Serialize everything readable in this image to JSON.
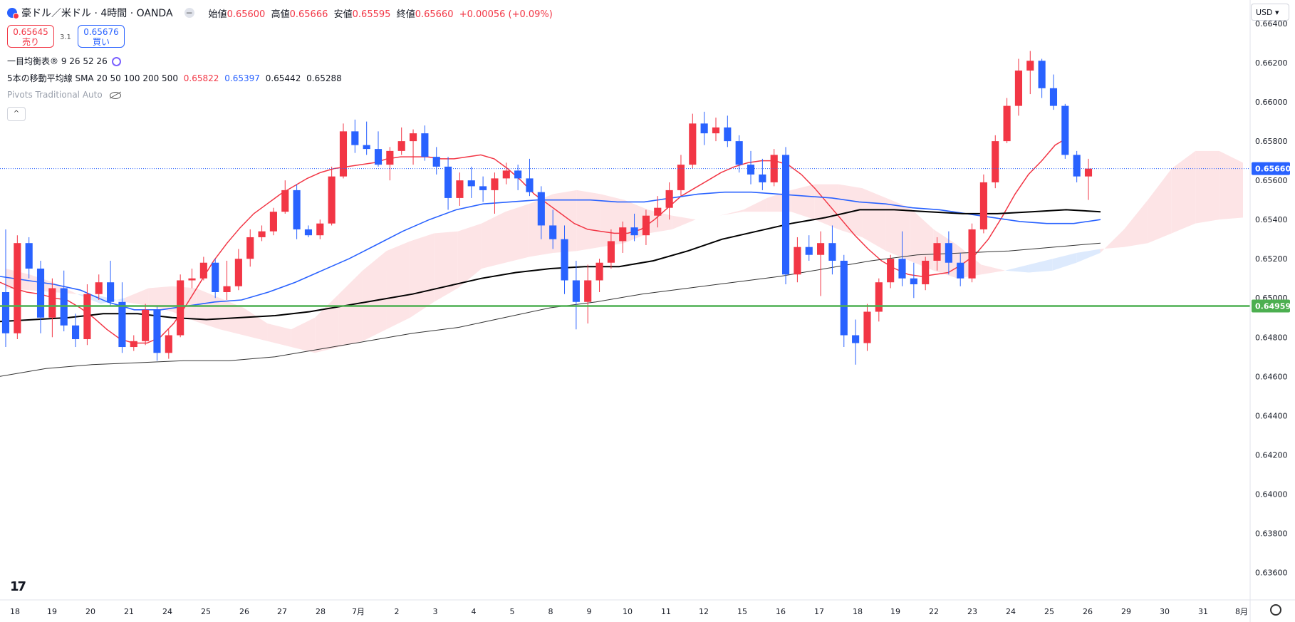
{
  "header": {
    "symbol": "豪ドル／米ドル · 4時間 · OANDA",
    "open_label": "始値",
    "open": "0.65600",
    "high_label": "高値",
    "high": "0.65666",
    "low_label": "安値",
    "low": "0.65595",
    "close_label": "終値",
    "close": "0.65660",
    "change": "+0.00056 (+0.09%)"
  },
  "trade": {
    "sell_price": "0.65645",
    "sell_label": "売り",
    "buy_price": "0.65676",
    "buy_label": "買い",
    "spread": "3.1"
  },
  "indicators": {
    "ichimoku": "一目均衡表® 9 26 52 26",
    "ma_label": "5本の移動平均線 SMA 20 50 100 200 500",
    "ma_values": [
      "0.65822",
      "0.65397",
      "0.65442",
      "0.65288"
    ],
    "pivots": "Pivots Traditional Auto"
  },
  "currency": "USD",
  "colors": {
    "up": "#f23645",
    "down": "#2962ff",
    "sma20": "#f23645",
    "sma50": "#2962ff",
    "sma100": "#000000",
    "sma200": "#333333",
    "level": "#4caf50",
    "cloud_bull": "#fde4e6",
    "cloud_bear": "#ddeafd"
  },
  "chart_data": {
    "type": "candlestick",
    "y_ticks": [
      "0.66400",
      "0.66200",
      "0.66000",
      "0.65800",
      "0.65600",
      "0.65400",
      "0.65200",
      "0.65000",
      "0.64800",
      "0.64600",
      "0.64400",
      "0.64200",
      "0.64000",
      "0.63800",
      "0.63600"
    ],
    "ylim": [
      0.6346,
      0.6652
    ],
    "x_ticks": [
      "18",
      "19",
      "20",
      "21",
      "24",
      "25",
      "26",
      "27",
      "28",
      "7月",
      "2",
      "3",
      "4",
      "5",
      "8",
      "9",
      "10",
      "11",
      "12",
      "15",
      "16",
      "17",
      "18",
      "19",
      "22",
      "23",
      "24",
      "25",
      "26",
      "29",
      "30",
      "31",
      "8月"
    ],
    "current_price": "0.65660",
    "horizontal_level": "0.64959",
    "candles": [
      [
        0.6503,
        0.6535,
        0.6475,
        0.6482
      ],
      [
        0.6482,
        0.6532,
        0.6479,
        0.6528
      ],
      [
        0.6528,
        0.6531,
        0.651,
        0.6515
      ],
      [
        0.6515,
        0.6519,
        0.6482,
        0.649
      ],
      [
        0.649,
        0.651,
        0.648,
        0.6505
      ],
      [
        0.6505,
        0.6514,
        0.6483,
        0.6486
      ],
      [
        0.6486,
        0.6492,
        0.6475,
        0.6479
      ],
      [
        0.6479,
        0.6507,
        0.6476,
        0.6502
      ],
      [
        0.6502,
        0.6512,
        0.6499,
        0.6508
      ],
      [
        0.6508,
        0.6519,
        0.6496,
        0.6498
      ],
      [
        0.6498,
        0.6508,
        0.6472,
        0.6475
      ],
      [
        0.6475,
        0.6481,
        0.6473,
        0.6478
      ],
      [
        0.6478,
        0.6497,
        0.6476,
        0.6494
      ],
      [
        0.6494,
        0.6496,
        0.6468,
        0.6472
      ],
      [
        0.6472,
        0.6484,
        0.6469,
        0.6481
      ],
      [
        0.6481,
        0.6512,
        0.648,
        0.6509
      ],
      [
        0.6509,
        0.6515,
        0.6505,
        0.651
      ],
      [
        0.651,
        0.6521,
        0.6509,
        0.6518
      ],
      [
        0.6518,
        0.652,
        0.65,
        0.6503
      ],
      [
        0.6503,
        0.6519,
        0.6499,
        0.6506
      ],
      [
        0.6506,
        0.6525,
        0.6504,
        0.652
      ],
      [
        0.652,
        0.6535,
        0.6516,
        0.6531
      ],
      [
        0.6531,
        0.6537,
        0.6529,
        0.6534
      ],
      [
        0.6534,
        0.6546,
        0.6532,
        0.6544
      ],
      [
        0.6544,
        0.656,
        0.6543,
        0.6555
      ],
      [
        0.6555,
        0.6558,
        0.653,
        0.6535
      ],
      [
        0.6535,
        0.6537,
        0.6531,
        0.6532
      ],
      [
        0.6532,
        0.654,
        0.653,
        0.6538
      ],
      [
        0.6538,
        0.6567,
        0.6537,
        0.6562
      ],
      [
        0.6562,
        0.6589,
        0.6561,
        0.6585
      ],
      [
        0.6585,
        0.6591,
        0.6574,
        0.6578
      ],
      [
        0.6578,
        0.659,
        0.6573,
        0.6576
      ],
      [
        0.6576,
        0.6585,
        0.6567,
        0.6568
      ],
      [
        0.6568,
        0.6577,
        0.656,
        0.6575
      ],
      [
        0.6575,
        0.6587,
        0.6573,
        0.658
      ],
      [
        0.658,
        0.6586,
        0.6568,
        0.6584
      ],
      [
        0.6584,
        0.6588,
        0.657,
        0.6572
      ],
      [
        0.6572,
        0.6577,
        0.6563,
        0.6567
      ],
      [
        0.6567,
        0.6572,
        0.6545,
        0.6551
      ],
      [
        0.6551,
        0.6564,
        0.6547,
        0.656
      ],
      [
        0.656,
        0.6567,
        0.6551,
        0.6557
      ],
      [
        0.6557,
        0.6562,
        0.6549,
        0.6555
      ],
      [
        0.6555,
        0.6564,
        0.6543,
        0.6561
      ],
      [
        0.6561,
        0.6569,
        0.6558,
        0.6565
      ],
      [
        0.6565,
        0.6568,
        0.6555,
        0.6561
      ],
      [
        0.6561,
        0.6571,
        0.6552,
        0.6554
      ],
      [
        0.6554,
        0.6557,
        0.653,
        0.6537
      ],
      [
        0.6537,
        0.6545,
        0.6525,
        0.653
      ],
      [
        0.653,
        0.6537,
        0.6502,
        0.6509
      ],
      [
        0.6509,
        0.6519,
        0.6484,
        0.6498
      ],
      [
        0.6498,
        0.6517,
        0.6487,
        0.6509
      ],
      [
        0.6509,
        0.652,
        0.6503,
        0.6518
      ],
      [
        0.6518,
        0.6535,
        0.6515,
        0.6529
      ],
      [
        0.6529,
        0.6539,
        0.6523,
        0.6536
      ],
      [
        0.6536,
        0.6543,
        0.6529,
        0.6532
      ],
      [
        0.6532,
        0.6545,
        0.6527,
        0.6542
      ],
      [
        0.6542,
        0.6552,
        0.6536,
        0.6546
      ],
      [
        0.6546,
        0.6559,
        0.654,
        0.6555
      ],
      [
        0.6555,
        0.6573,
        0.6552,
        0.6568
      ],
      [
        0.6568,
        0.6594,
        0.6566,
        0.6589
      ],
      [
        0.6589,
        0.6595,
        0.6578,
        0.6584
      ],
      [
        0.6584,
        0.6592,
        0.658,
        0.6587
      ],
      [
        0.6587,
        0.6593,
        0.6577,
        0.658
      ],
      [
        0.658,
        0.6583,
        0.6564,
        0.6568
      ],
      [
        0.6568,
        0.6575,
        0.6558,
        0.6563
      ],
      [
        0.6563,
        0.6571,
        0.6555,
        0.6559
      ],
      [
        0.6559,
        0.6576,
        0.6557,
        0.6573
      ],
      [
        0.6573,
        0.6577,
        0.6507,
        0.6512
      ],
      [
        0.6512,
        0.6531,
        0.6508,
        0.6526
      ],
      [
        0.6526,
        0.6532,
        0.6519,
        0.6522
      ],
      [
        0.6522,
        0.6534,
        0.6501,
        0.6528
      ],
      [
        0.6528,
        0.6537,
        0.6512,
        0.6519
      ],
      [
        0.6519,
        0.6522,
        0.6475,
        0.6481
      ],
      [
        0.6481,
        0.6489,
        0.6466,
        0.6477
      ],
      [
        0.6477,
        0.6497,
        0.6473,
        0.6493
      ],
      [
        0.6493,
        0.651,
        0.6488,
        0.6508
      ],
      [
        0.6508,
        0.6522,
        0.6505,
        0.652
      ],
      [
        0.652,
        0.6534,
        0.6506,
        0.651
      ],
      [
        0.651,
        0.6518,
        0.65,
        0.6507
      ],
      [
        0.6507,
        0.6521,
        0.6504,
        0.6519
      ],
      [
        0.6519,
        0.6531,
        0.6514,
        0.6528
      ],
      [
        0.6528,
        0.6534,
        0.6512,
        0.6518
      ],
      [
        0.6518,
        0.6523,
        0.6506,
        0.651
      ],
      [
        0.651,
        0.6538,
        0.6508,
        0.6535
      ],
      [
        0.6535,
        0.6563,
        0.6533,
        0.6559
      ],
      [
        0.6559,
        0.6583,
        0.6556,
        0.658
      ],
      [
        0.658,
        0.6602,
        0.6579,
        0.6598
      ],
      [
        0.6598,
        0.6622,
        0.6593,
        0.6616
      ],
      [
        0.6616,
        0.6626,
        0.6604,
        0.6621
      ],
      [
        0.6621,
        0.6622,
        0.6602,
        0.6607
      ],
      [
        0.6607,
        0.6614,
        0.6596,
        0.6598
      ],
      [
        0.6598,
        0.6599,
        0.6571,
        0.6573
      ],
      [
        0.6573,
        0.6575,
        0.6559,
        0.6562
      ],
      [
        0.6562,
        0.6571,
        0.655,
        0.6566
      ]
    ],
    "series": [
      {
        "name": "SMA 20",
        "values": [
          0.6508,
          0.6505,
          0.6503,
          0.6502,
          0.65,
          0.6499,
          0.6495,
          0.649,
          0.6484,
          0.6479,
          0.6477,
          0.6477,
          0.648,
          0.6487,
          0.6497,
          0.6508,
          0.6519,
          0.6528,
          0.6536,
          0.6543,
          0.6548,
          0.6553,
          0.6557,
          0.6561,
          0.6564,
          0.6566,
          0.6567,
          0.6568,
          0.6569,
          0.6571,
          0.6572,
          0.6572,
          0.6572,
          0.6571,
          0.6571,
          0.6572,
          0.6573,
          0.6571,
          0.6566,
          0.656,
          0.6553,
          0.6548,
          0.6543,
          0.6538,
          0.6535,
          0.6534,
          0.6533,
          0.6533,
          0.6535,
          0.654,
          0.6546,
          0.6552,
          0.6556,
          0.656,
          0.6564,
          0.6567,
          0.6569,
          0.657,
          0.657,
          0.6568,
          0.6563,
          0.6556,
          0.6548,
          0.654,
          0.6532,
          0.6525,
          0.6519,
          0.6515,
          0.6512,
          0.6511,
          0.6512,
          0.6513,
          0.6517,
          0.6522,
          0.653,
          0.6541,
          0.6553,
          0.6563,
          0.657,
          0.6578,
          0.6582
        ]
      },
      {
        "name": "SMA 50",
        "values": [
          0.6511,
          0.6509,
          0.6507,
          0.6504,
          0.6498,
          0.6494,
          0.6494,
          0.6496,
          0.6498,
          0.6499,
          0.6503,
          0.6508,
          0.6514,
          0.652,
          0.6527,
          0.6534,
          0.654,
          0.6545,
          0.6548,
          0.6549,
          0.655,
          0.655,
          0.655,
          0.6549,
          0.6549,
          0.6551,
          0.6553,
          0.6554,
          0.6554,
          0.6553,
          0.6552,
          0.6551,
          0.6549,
          0.6548,
          0.6546,
          0.6545,
          0.6543,
          0.6541,
          0.6539,
          0.6538,
          0.6538,
          0.654
        ]
      },
      {
        "name": "SMA 100",
        "values": [
          0.6488,
          0.6489,
          0.649,
          0.6492,
          0.6492,
          0.649,
          0.6489,
          0.649,
          0.6491,
          0.6493,
          0.6496,
          0.6499,
          0.6502,
          0.6506,
          0.651,
          0.6513,
          0.6515,
          0.6516,
          0.6516,
          0.6519,
          0.6524,
          0.653,
          0.6534,
          0.6538,
          0.6541,
          0.6545,
          0.6545,
          0.6544,
          0.6543,
          0.6543,
          0.6544,
          0.6545,
          0.6544
        ]
      },
      {
        "name": "SMA 200",
        "values": [
          0.646,
          0.6464,
          0.6466,
          0.6467,
          0.6468,
          0.6468,
          0.647,
          0.6474,
          0.6478,
          0.6482,
          0.6485,
          0.649,
          0.6495,
          0.6498,
          0.6502,
          0.6505,
          0.6508,
          0.6511,
          0.6515,
          0.6519,
          0.6522,
          0.6523,
          0.6524,
          0.6526,
          0.6528
        ]
      }
    ],
    "cloud": [
      {
        "span_a": [
          0.6515,
          0.6512,
          0.6508,
          0.6502,
          0.6497,
          0.65,
          0.6505,
          0.6506,
          0.6505,
          0.65,
          0.6495,
          0.6487,
          0.6484,
          0.649,
          0.6502,
          0.6514,
          0.6524,
          0.6529,
          0.6533,
          0.6534,
          0.6538,
          0.6544,
          0.6548,
          0.6553,
          0.6555,
          0.6553,
          0.655,
          0.6545,
          0.6542,
          0.654,
          0.6542,
          0.6545,
          0.6551,
          0.6555,
          0.6558,
          0.6558,
          0.6556,
          0.6551,
          0.6546,
          0.6535,
          0.6527,
          0.6517,
          0.6514,
          0.6513,
          0.6514,
          0.6518,
          0.6523,
          0.6535,
          0.655,
          0.6566,
          0.6575,
          0.6575,
          0.6569
        ],
        "span_b": [
          0.6505,
          0.6504,
          0.6503,
          0.6502,
          0.6501,
          0.6498,
          0.6496,
          0.6493,
          0.6488,
          0.6484,
          0.6481,
          0.6478,
          0.6475,
          0.6472,
          0.6475,
          0.6478,
          0.6484,
          0.649,
          0.6498,
          0.6505,
          0.6515,
          0.6518,
          0.6521,
          0.6523,
          0.6524,
          0.6526,
          0.6528,
          0.6533,
          0.6535,
          0.654,
          0.6542,
          0.6544,
          0.6544,
          0.6544,
          0.654,
          0.6535,
          0.6531,
          0.6524,
          0.6519,
          0.6514,
          0.651,
          0.6512,
          0.6514,
          0.6517,
          0.652,
          0.6523,
          0.6525,
          0.6526,
          0.6528,
          0.6533,
          0.6538,
          0.654,
          0.6541
        ]
      }
    ]
  }
}
